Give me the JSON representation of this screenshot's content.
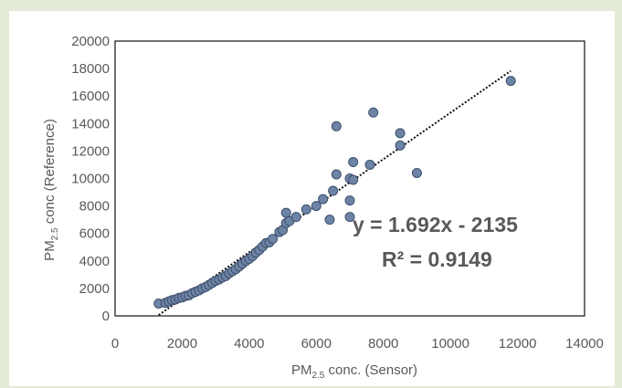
{
  "chart_data": {
    "type": "scatter",
    "xlim": [
      0,
      14000
    ],
    "ylim": [
      0,
      20000
    ],
    "x_ticks": [
      "0",
      "2000",
      "4000",
      "6000",
      "8000",
      "10000",
      "12000",
      "14000"
    ],
    "y_ticks": [
      "0",
      "2000",
      "4000",
      "6000",
      "8000",
      "10000",
      "12000",
      "14000",
      "16000",
      "18000",
      "20000"
    ],
    "xlabel_main": "PM",
    "xlabel_sub": "2.5",
    "xlabel_rest": " conc. (Sensor)",
    "ylabel_main": "PM",
    "ylabel_sub": "2.5",
    "ylabel_rest": " conc (Reference)",
    "grid": false,
    "marker_color": "#6e84a6",
    "marker_edge": "#3d4f6b",
    "trendline": {
      "type": "linear",
      "slope": 1.692,
      "intercept": -2135,
      "x_range": [
        1300,
        11800
      ],
      "style": "dotted"
    },
    "annotations": {
      "equation": "y = 1.692x - 2135",
      "r2": "R² = 0.9149"
    },
    "points": [
      [
        1300,
        900
      ],
      [
        1500,
        950
      ],
      [
        1600,
        1050
      ],
      [
        1700,
        1150
      ],
      [
        1800,
        1200
      ],
      [
        1900,
        1300
      ],
      [
        2000,
        1350
      ],
      [
        2100,
        1450
      ],
      [
        2200,
        1500
      ],
      [
        2300,
        1650
      ],
      [
        2400,
        1750
      ],
      [
        2500,
        1850
      ],
      [
        2600,
        2000
      ],
      [
        2700,
        2100
      ],
      [
        2800,
        2250
      ],
      [
        2900,
        2400
      ],
      [
        3000,
        2550
      ],
      [
        3100,
        2650
      ],
      [
        3200,
        2800
      ],
      [
        3300,
        2900
      ],
      [
        3400,
        3100
      ],
      [
        3500,
        3250
      ],
      [
        3600,
        3400
      ],
      [
        3700,
        3600
      ],
      [
        3800,
        3800
      ],
      [
        3900,
        4000
      ],
      [
        4000,
        4150
      ],
      [
        4100,
        4350
      ],
      [
        4200,
        4600
      ],
      [
        4300,
        4800
      ],
      [
        4400,
        5050
      ],
      [
        4500,
        5300
      ],
      [
        4600,
        5350
      ],
      [
        4700,
        5600
      ],
      [
        4900,
        6100
      ],
      [
        5000,
        6250
      ],
      [
        5100,
        6750
      ],
      [
        5200,
        6900
      ],
      [
        5400,
        7200
      ],
      [
        5100,
        7500
      ],
      [
        5700,
        7750
      ],
      [
        6000,
        8000
      ],
      [
        6200,
        8500
      ],
      [
        6400,
        7000
      ],
      [
        6500,
        9100
      ],
      [
        6600,
        10300
      ],
      [
        6600,
        13800
      ],
      [
        7000,
        10000
      ],
      [
        7100,
        9900
      ],
      [
        7100,
        11200
      ],
      [
        7000,
        8400
      ],
      [
        7000,
        7200
      ],
      [
        7600,
        11000
      ],
      [
        7700,
        14800
      ],
      [
        8500,
        12400
      ],
      [
        8500,
        13300
      ],
      [
        9000,
        10400
      ],
      [
        11800,
        17100
      ]
    ]
  }
}
